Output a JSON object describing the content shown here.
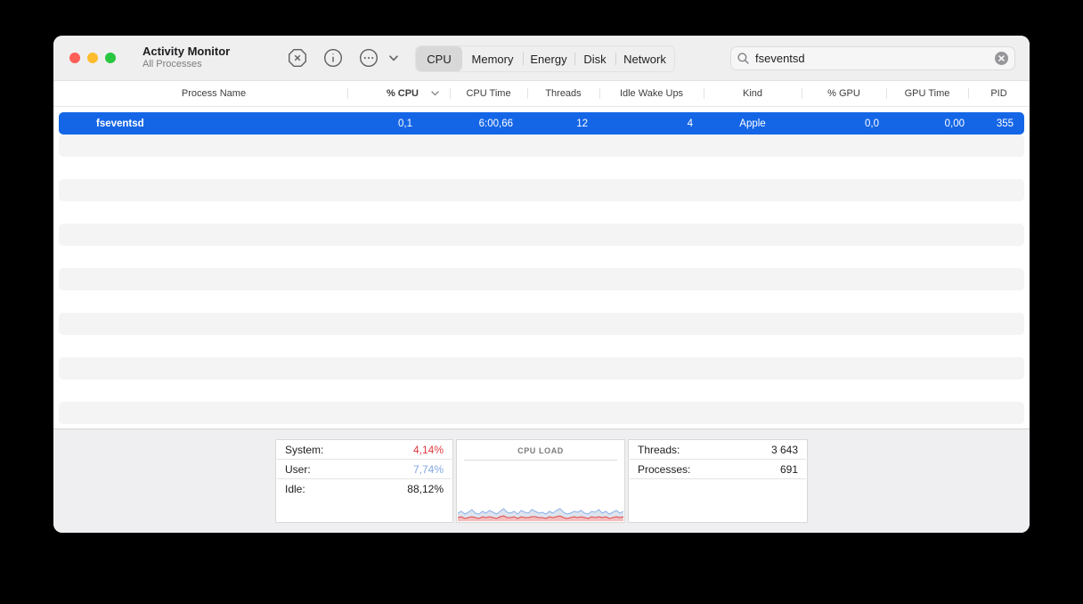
{
  "window": {
    "title": "Activity Monitor",
    "subtitle": "All Processes"
  },
  "toolbar": {
    "icons": [
      {
        "name": "stop-x-icon"
      },
      {
        "name": "info-icon"
      },
      {
        "name": "ellipsis-icon"
      },
      {
        "name": "chevron-down-icon"
      }
    ],
    "tabs": [
      {
        "label": "CPU",
        "selected": true
      },
      {
        "label": "Memory",
        "selected": false
      },
      {
        "label": "Energy",
        "selected": false
      },
      {
        "label": "Disk",
        "selected": false
      },
      {
        "label": "Network",
        "selected": false
      }
    ],
    "search": {
      "value": "fseventsd",
      "icon": "search-icon",
      "clear_icon": "clear-icon"
    }
  },
  "table": {
    "columns": [
      {
        "label": "Process Name"
      },
      {
        "label": "% CPU",
        "sorted": "desc"
      },
      {
        "label": "CPU Time"
      },
      {
        "label": "Threads"
      },
      {
        "label": "Idle Wake Ups"
      },
      {
        "label": "Kind"
      },
      {
        "label": "% GPU"
      },
      {
        "label": "GPU Time"
      },
      {
        "label": "PID"
      }
    ],
    "selected_row": {
      "cells": [
        "fseventsd",
        "0,1",
        "6:00,66",
        "12",
        "4",
        "Apple",
        "0,0",
        "0,00",
        "355"
      ]
    },
    "empty_rows": 13
  },
  "footer": {
    "cpu_usage": {
      "rows": [
        {
          "label": "System:",
          "value": "4,14%",
          "color": "#e0383f"
        },
        {
          "label": "User:",
          "value": "7,74%",
          "color": "#82a7e3"
        },
        {
          "label": "Idle:",
          "value": "88,12%",
          "color": "#000000"
        }
      ]
    },
    "load_chart": {
      "title": "CPU LOAD",
      "chart_data": {
        "type": "area",
        "ylim": [
          0,
          18
        ],
        "series": [
          {
            "name": "User",
            "color": "#8cb0e8",
            "fill": "#dde4ee",
            "values": [
              9,
              11,
              8,
              10,
              13,
              9,
              8,
              11,
              9,
              12,
              10,
              8,
              11,
              14,
              10,
              9,
              11,
              8,
              12,
              10,
              9,
              13,
              11,
              9,
              10,
              8,
              11,
              9,
              12,
              14,
              10,
              8,
              9,
              11,
              10,
              12,
              9,
              8,
              11,
              10,
              13,
              9,
              11,
              8,
              10,
              12,
              9,
              11
            ]
          },
          {
            "name": "System",
            "color": "#df4a4c",
            "fill": "#f4bcbc",
            "values": [
              4,
              5,
              3,
              4,
              5,
              4,
              3,
              5,
              4,
              5,
              4,
              3,
              5,
              6,
              4,
              4,
              5,
              3,
              5,
              4,
              4,
              5,
              5,
              4,
              4,
              3,
              5,
              4,
              5,
              6,
              4,
              3,
              4,
              5,
              4,
              5,
              4,
              3,
              5,
              4,
              5,
              4,
              5,
              3,
              4,
              5,
              4,
              5
            ]
          }
        ]
      }
    },
    "stats": {
      "rows": [
        {
          "label": "Threads:",
          "value": "3 643"
        },
        {
          "label": "Processes:",
          "value": "691"
        }
      ]
    }
  },
  "colors": {
    "selection": "#1566e7",
    "stripe": "#f4f4f5",
    "accent_red": "#e0383f",
    "accent_blue": "#82a7e3"
  }
}
